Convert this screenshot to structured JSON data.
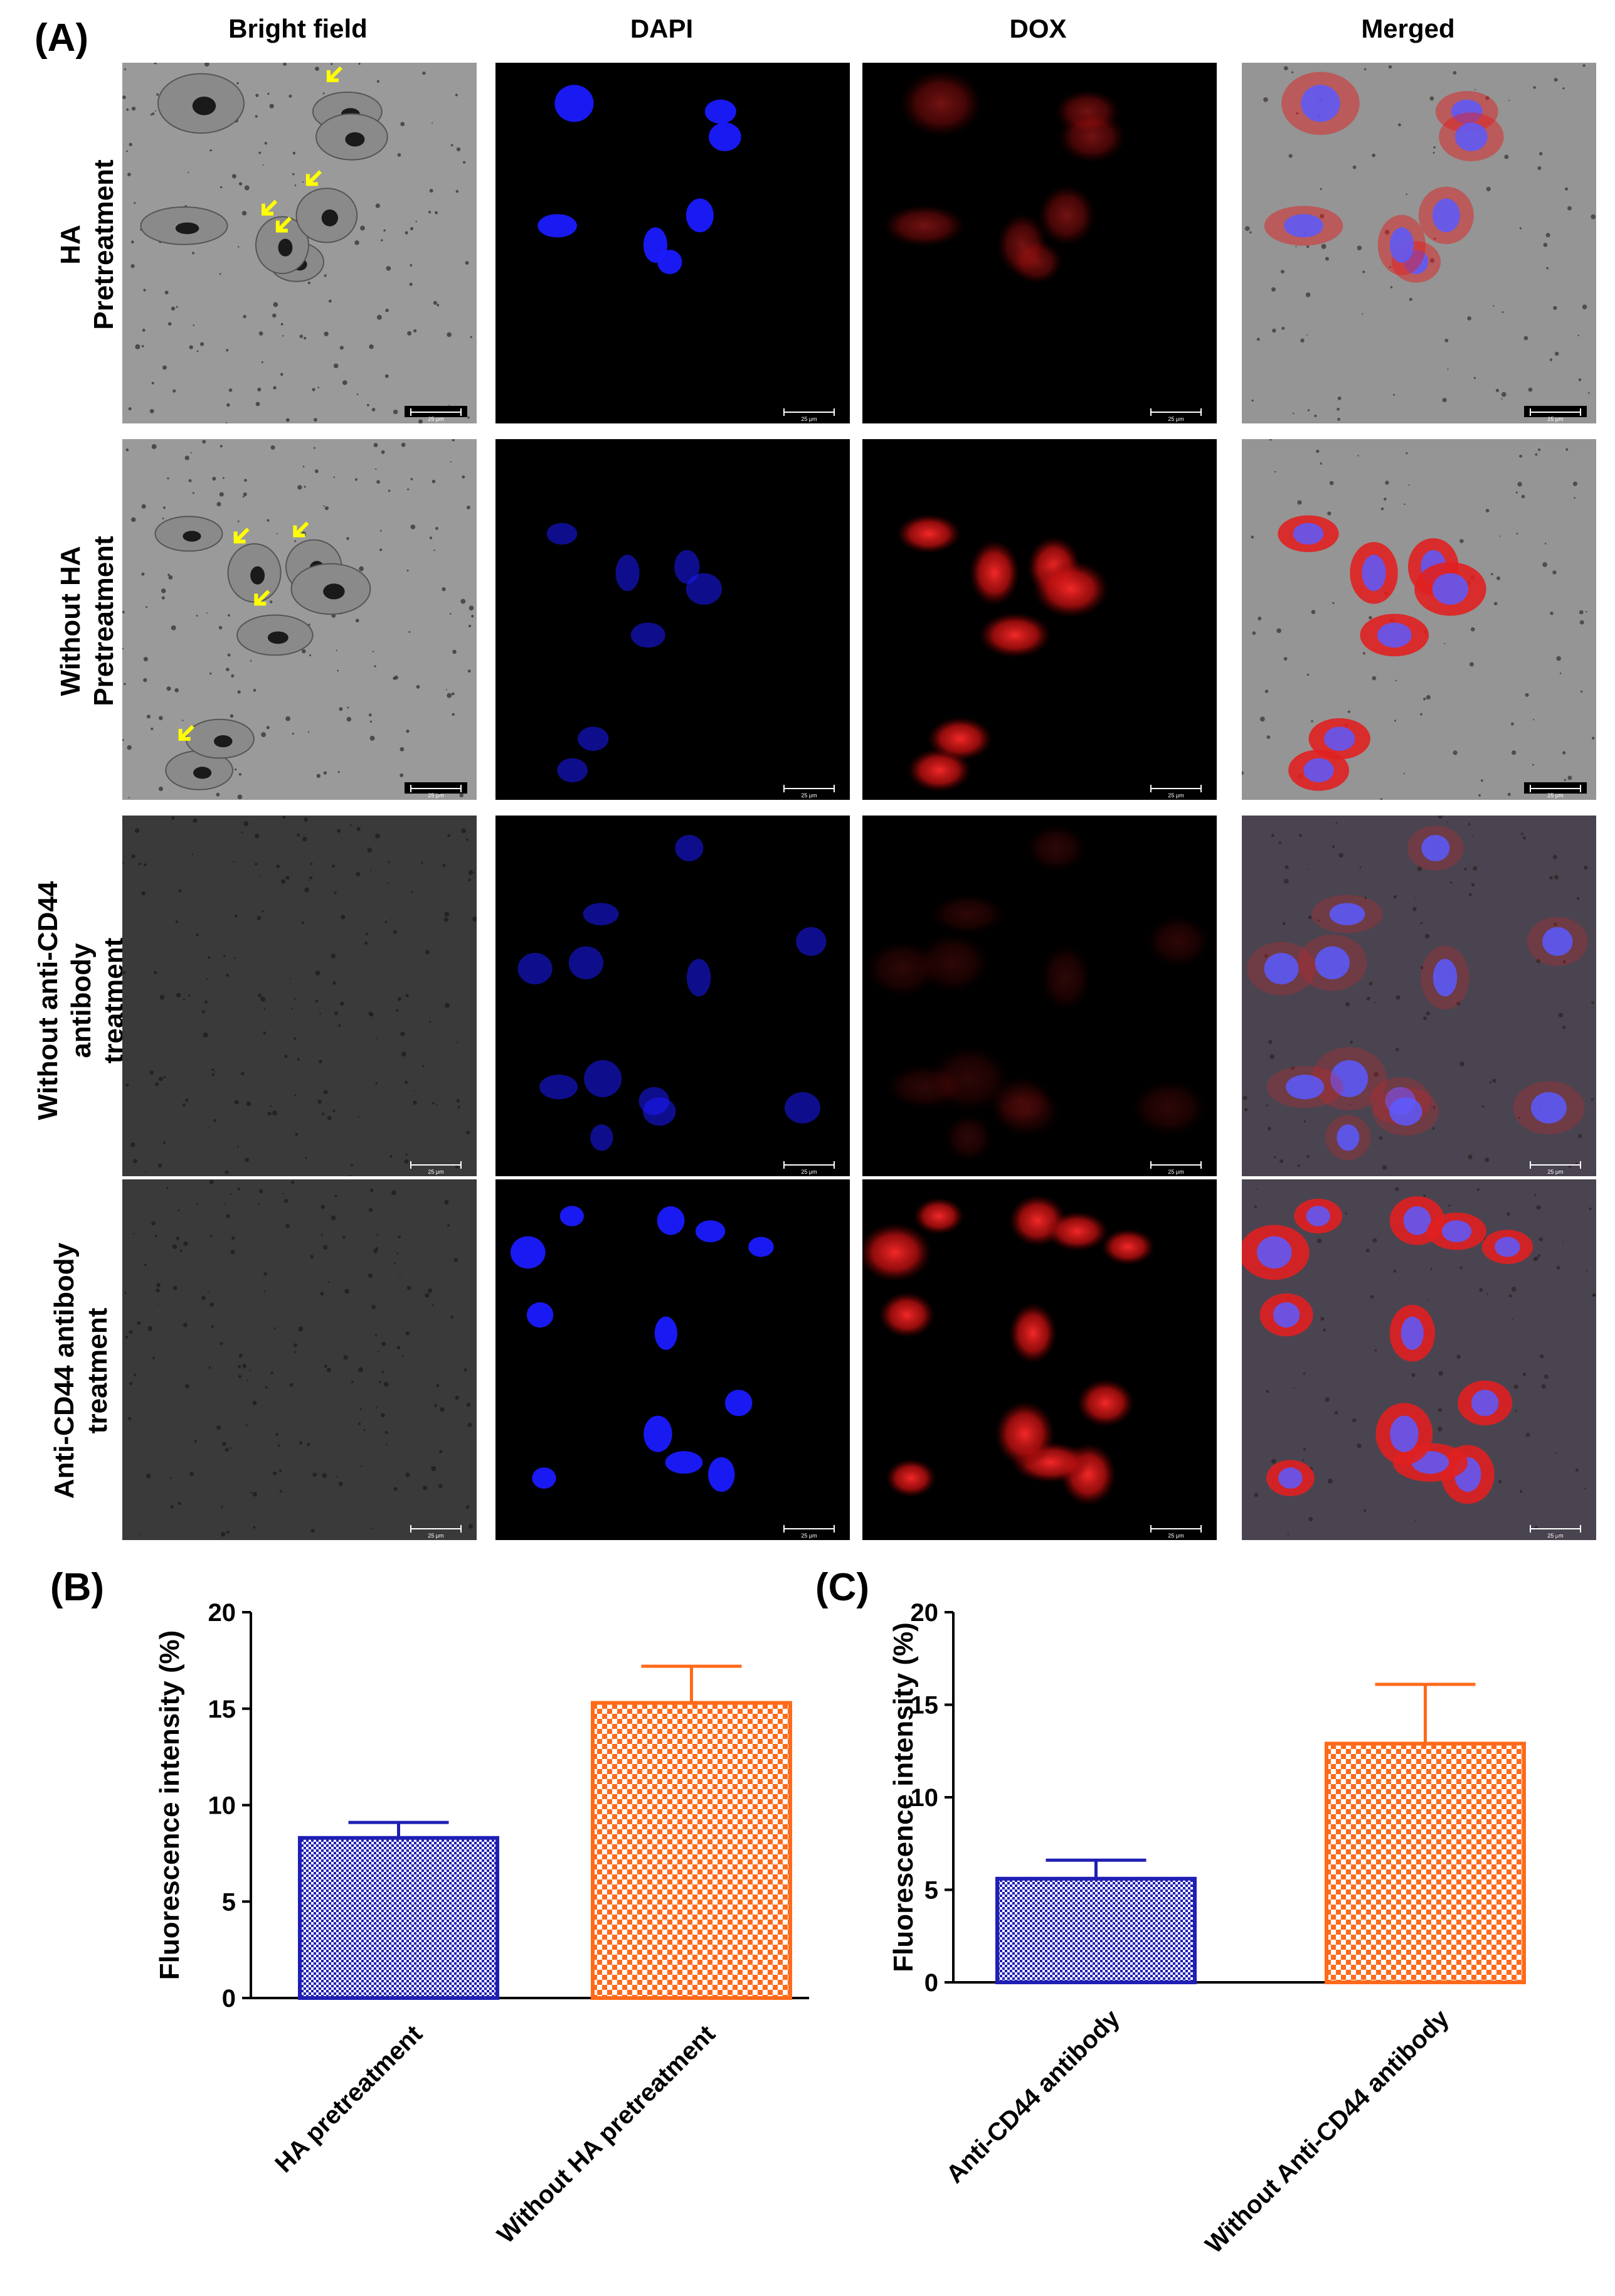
{
  "panel_letters": {
    "a": "(A)",
    "b": "(B)",
    "c": "(C)"
  },
  "column_headers": [
    "Bright field",
    "DAPI",
    "DOX",
    "Merged"
  ],
  "row_labels": [
    [
      "HA",
      "Pretreatment"
    ],
    [
      "Without HA",
      "Pretreatment"
    ],
    [
      "Without anti-CD44",
      "antibody",
      "treatment"
    ],
    [
      "Anti-CD44 antibody",
      "treatment"
    ]
  ],
  "scale_bar_label": "25 μm",
  "colors": {
    "blue_bar": "#1f1fb4",
    "orange_bar": "#ff6a1a",
    "dapi": "#1a1aff",
    "dox": "#ff1a1a",
    "arrow": "#ffff00"
  },
  "icons": {
    "arrow": "yellow-arrow-icon"
  },
  "chart_data": [
    {
      "type": "bar",
      "panel": "(B)",
      "categories": [
        "HA pretreatment",
        "Without HA pretreatment"
      ],
      "values": [
        8.3,
        15.3
      ],
      "errors": [
        0.8,
        1.9
      ],
      "ylabel": "Fluorescence intensity (%)",
      "ylim": [
        0,
        20
      ],
      "yticks": [
        0,
        5,
        10,
        15,
        20
      ],
      "bar_patterns": [
        "blue-crosshatch",
        "orange-checker"
      ]
    },
    {
      "type": "bar",
      "panel": "(C)",
      "categories": [
        "Anti-CD44 antibody",
        "Without Anti-CD44 antibody"
      ],
      "values": [
        5.6,
        12.9
      ],
      "errors": [
        1.0,
        3.2
      ],
      "ylabel": "Fluorescence intensity (%)",
      "ylim": [
        0,
        20
      ],
      "yticks": [
        0,
        5,
        10,
        15,
        20
      ],
      "bar_patterns": [
        "blue-crosshatch",
        "orange-checker"
      ]
    }
  ]
}
